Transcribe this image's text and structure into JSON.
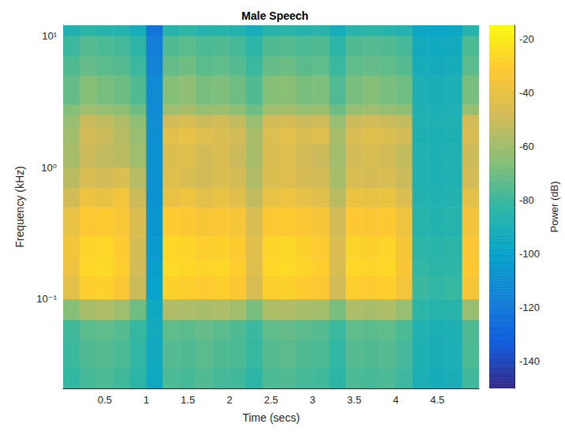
{
  "chart_data": {
    "type": "spectrogram",
    "title": "Male Speech",
    "x_label": "Time (secs)",
    "y_label": "Frequency (kHz)",
    "xlim": [
      0,
      5
    ],
    "xticks": [
      0.5,
      1,
      1.5,
      2,
      2.5,
      3,
      3.5,
      4,
      4.5
    ],
    "ylim": [
      0.021,
      12
    ],
    "yticks": [
      {
        "value": 0.1,
        "label": "10⁻¹"
      },
      {
        "value": 1,
        "label": "10⁰"
      },
      {
        "value": 10,
        "label": "10¹"
      }
    ],
    "log": "y",
    "grid": false,
    "cells": {
      "x_edges": [
        0,
        0.2,
        0.4,
        0.6,
        0.8,
        1.0,
        1.2,
        1.4,
        1.6,
        1.8,
        2.0,
        2.2,
        2.4,
        2.6,
        2.8,
        3.0,
        3.2,
        3.4,
        3.6,
        3.8,
        4.0,
        4.2,
        4.4,
        4.6,
        4.8,
        5.0
      ],
      "y_edges": [
        0.021,
        0.03,
        0.05,
        0.07,
        0.1,
        0.15,
        0.2,
        0.3,
        0.5,
        0.7,
        1,
        1.5,
        2,
        2.5,
        3,
        5,
        7,
        10,
        12
      ],
      "power": [
        [
          -82,
          -78,
          -77,
          -79,
          -84,
          -96,
          -77,
          -78,
          -76,
          -78,
          -79,
          -83,
          -77,
          -76,
          -78,
          -79,
          -84,
          -77,
          -78,
          -77,
          -80,
          -90,
          -92,
          -91,
          -79
        ],
        [
          -80,
          -76,
          -75,
          -77,
          -82,
          -95,
          -75,
          -76,
          -74,
          -76,
          -77,
          -81,
          -75,
          -74,
          -76,
          -77,
          -82,
          -75,
          -76,
          -75,
          -78,
          -89,
          -91,
          -90,
          -77
        ],
        [
          -79,
          -74,
          -73,
          -75,
          -81,
          -94,
          -73,
          -74,
          -72,
          -74,
          -76,
          -80,
          -73,
          -72,
          -74,
          -75,
          -80,
          -73,
          -74,
          -73,
          -77,
          -88,
          -90,
          -89,
          -76
        ],
        [
          -66,
          -58,
          -56,
          -60,
          -70,
          -95,
          -56,
          -57,
          -58,
          -57,
          -59,
          -68,
          -57,
          -56,
          -58,
          -59,
          -68,
          -57,
          -58,
          -57,
          -62,
          -84,
          -86,
          -85,
          -62
        ],
        [
          -42,
          -30,
          -29,
          -33,
          -50,
          -100,
          -29,
          -30,
          -31,
          -30,
          -32,
          -46,
          -30,
          -29,
          -31,
          -32,
          -48,
          -30,
          -31,
          -30,
          -36,
          -80,
          -82,
          -81,
          -35
        ],
        [
          -38,
          -27,
          -26,
          -30,
          -48,
          -102,
          -26,
          -27,
          -28,
          -27,
          -30,
          -44,
          -27,
          -26,
          -28,
          -30,
          -46,
          -27,
          -28,
          -27,
          -34,
          -82,
          -84,
          -83,
          -32
        ],
        [
          -36,
          -28,
          -27,
          -31,
          -47,
          -104,
          -27,
          -28,
          -30,
          -29,
          -31,
          -43,
          -28,
          -27,
          -29,
          -31,
          -45,
          -28,
          -29,
          -28,
          -35,
          -84,
          -85,
          -84,
          -33
        ],
        [
          -40,
          -32,
          -31,
          -34,
          -45,
          -106,
          -31,
          -32,
          -34,
          -33,
          -35,
          -46,
          -32,
          -31,
          -33,
          -35,
          -48,
          -32,
          -33,
          -32,
          -38,
          -86,
          -87,
          -86,
          -36
        ],
        [
          -48,
          -38,
          -40,
          -36,
          -50,
          -108,
          -40,
          -38,
          -42,
          -40,
          -43,
          -52,
          -40,
          -38,
          -41,
          -43,
          -54,
          -39,
          -40,
          -39,
          -45,
          -87,
          -88,
          -87,
          -42
        ],
        [
          -54,
          -46,
          -48,
          -45,
          -55,
          -108,
          -44,
          -46,
          -48,
          -45,
          -47,
          -56,
          -45,
          -44,
          -47,
          -48,
          -58,
          -46,
          -47,
          -46,
          -50,
          -88,
          -89,
          -88,
          -48
        ],
        [
          -58,
          -50,
          -52,
          -54,
          -60,
          -108,
          -45,
          -44,
          -48,
          -46,
          -50,
          -58,
          -46,
          -44,
          -48,
          -50,
          -60,
          -48,
          -46,
          -48,
          -52,
          -88,
          -89,
          -88,
          -50
        ],
        [
          -60,
          -48,
          -50,
          -55,
          -62,
          -110,
          -42,
          -40,
          -44,
          -46,
          -48,
          -58,
          -45,
          -42,
          -46,
          -44,
          -58,
          -46,
          -44,
          -45,
          -48,
          -89,
          -90,
          -89,
          -46
        ],
        [
          -62,
          -50,
          -52,
          -56,
          -64,
          -110,
          -48,
          -46,
          -50,
          -48,
          -52,
          -62,
          -48,
          -47,
          -50,
          -49,
          -62,
          -50,
          -48,
          -50,
          -52,
          -88,
          -89,
          -88,
          -48
        ],
        [
          -66,
          -60,
          -62,
          -64,
          -70,
          -112,
          -60,
          -58,
          -62,
          -61,
          -64,
          -70,
          -60,
          -59,
          -62,
          -61,
          -70,
          -62,
          -60,
          -62,
          -64,
          -89,
          -90,
          -89,
          -62
        ],
        [
          -72,
          -66,
          -68,
          -70,
          -76,
          -112,
          -66,
          -64,
          -68,
          -67,
          -70,
          -76,
          -66,
          -65,
          -68,
          -67,
          -76,
          -68,
          -66,
          -68,
          -70,
          -90,
          -91,
          -90,
          -68
        ],
        [
          -76,
          -72,
          -74,
          -75,
          -80,
          -115,
          -72,
          -70,
          -74,
          -73,
          -75,
          -80,
          -72,
          -71,
          -74,
          -73,
          -80,
          -73,
          -72,
          -73,
          -75,
          -92,
          -93,
          -92,
          -74
        ],
        [
          -80,
          -75,
          -77,
          -78,
          -84,
          -118,
          -76,
          -74,
          -77,
          -76,
          -78,
          -84,
          -76,
          -75,
          -77,
          -76,
          -84,
          -76,
          -75,
          -76,
          -78,
          -94,
          -95,
          -94,
          -77
        ],
        [
          -88,
          -84,
          -86,
          -87,
          -92,
          -122,
          -85,
          -83,
          -86,
          -85,
          -87,
          -92,
          -85,
          -84,
          -86,
          -85,
          -92,
          -85,
          -84,
          -85,
          -87,
          -97,
          -98,
          -97,
          -86
        ]
      ]
    },
    "colorbar": {
      "label": "Power (dB)",
      "lim": [
        -150,
        -15
      ],
      "ticks": [
        -140,
        -120,
        -100,
        -80,
        -60,
        -40,
        -20
      ]
    }
  }
}
